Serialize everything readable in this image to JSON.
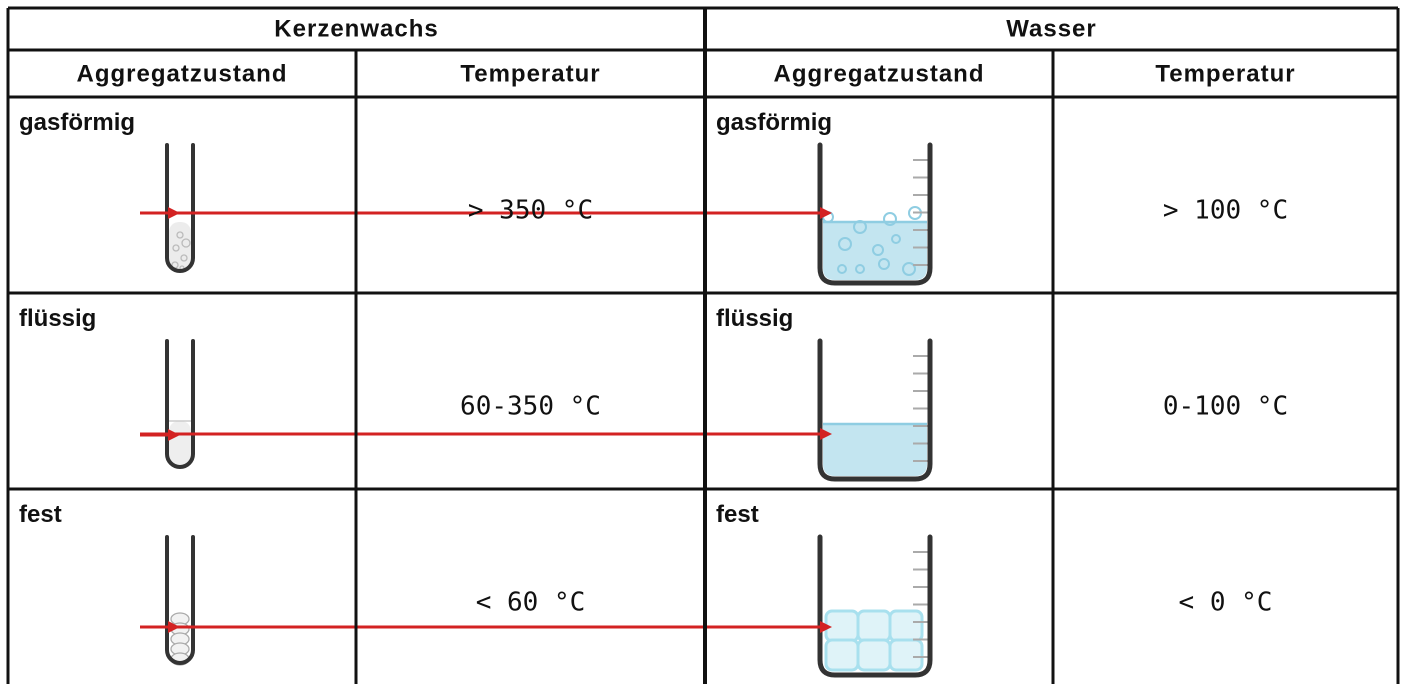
{
  "table": {
    "groups": [
      "Kerzenwachs",
      "Wasser"
    ],
    "header": [
      "Aggregatzustand",
      "Temperatur",
      "Aggregatzustand",
      "Temperatur"
    ],
    "rows": [
      [
        "gasförmig",
        "> 350 °C",
        "gasförmig",
        "> 100 °C"
      ],
      [
        "flüssig",
        "60-350 °C",
        "flüssig",
        "0-100 °C"
      ],
      [
        "fest",
        "< 60 °C",
        "fest",
        "< 0 °C"
      ]
    ]
  }
}
